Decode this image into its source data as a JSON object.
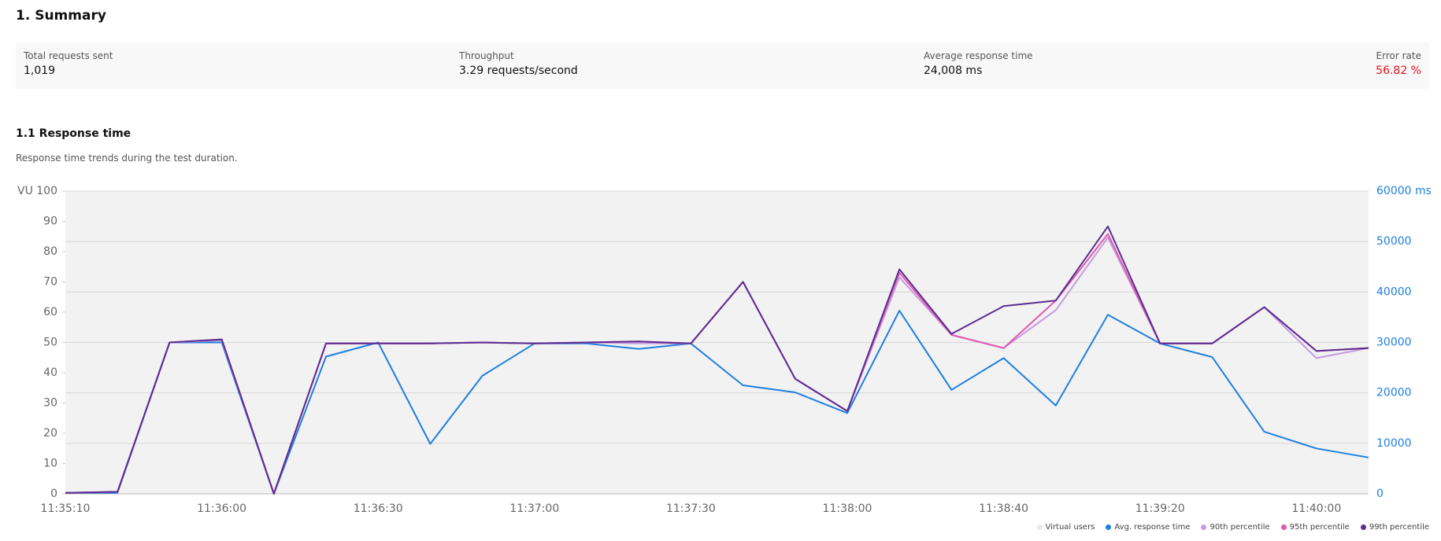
{
  "header": {
    "title": "1. Summary"
  },
  "stats": [
    {
      "label": "Total requests sent",
      "value": "1,019"
    },
    {
      "label": "Throughput",
      "value": "3.29 requests/second"
    },
    {
      "label": "Average response time",
      "value": "24,008 ms"
    },
    {
      "label": "Error rate",
      "value": "56.82 %"
    }
  ],
  "section": {
    "title": "1.1 Response time",
    "description": "Response time trends during the test duration."
  },
  "chart_data": {
    "type": "line",
    "categories": [
      "11:35:10",
      null,
      null,
      "11:36:00",
      null,
      null,
      "11:36:30",
      null,
      null,
      "11:37:00",
      null,
      null,
      "11:37:30",
      null,
      null,
      "11:38:00",
      null,
      null,
      "11:38:40",
      null,
      null,
      "11:39:20",
      null,
      null,
      "11:40:00",
      null
    ],
    "ylim": [
      0,
      100
    ],
    "yticks": [
      0,
      10,
      20,
      30,
      40,
      50,
      60,
      70,
      80,
      90,
      {
        "value": 100,
        "label": "VU 100"
      }
    ],
    "y2lim": [
      0,
      60000
    ],
    "y2ticks": [
      0,
      10000,
      20000,
      30000,
      40000,
      50000,
      {
        "value": 60000,
        "label": "60000 ms"
      }
    ],
    "grid": true,
    "legend": "bottom-right",
    "series": [
      {
        "name": "Virtual users",
        "color": "#e8e8e8",
        "values": [
          null,
          null,
          null,
          null,
          null,
          null,
          null,
          null,
          null,
          null,
          null,
          null,
          null,
          null,
          null,
          null,
          null,
          null,
          null,
          null,
          null,
          null,
          null,
          null,
          null,
          null
        ]
      },
      {
        "name": "Avg. response time",
        "color": "#1e7fe0",
        "axis": "y2",
        "values": [
          200,
          200,
          30000,
          30000,
          0,
          27200,
          30000,
          9900,
          23400,
          29800,
          29800,
          28700,
          29800,
          21500,
          20100,
          16000,
          36300,
          20600,
          26900,
          17500,
          35500,
          29800,
          27100,
          12300,
          9000,
          7200
        ]
      },
      {
        "name": "90th percentile",
        "color": "#c39be0",
        "axis": "y2",
        "values": [
          200,
          400,
          30000,
          30400,
          0,
          29800,
          29800,
          29800,
          30000,
          29800,
          30000,
          29800,
          29800,
          42000,
          22800,
          16400,
          42900,
          31500,
          28900,
          36400,
          50800,
          29800,
          29800,
          37000,
          26900,
          28900
        ]
      },
      {
        "name": "95th percentile",
        "color": "#e05aaf",
        "axis": "y2",
        "values": [
          200,
          400,
          30000,
          30600,
          0,
          29800,
          29800,
          29800,
          30000,
          29800,
          30000,
          30200,
          29800,
          42000,
          22800,
          16400,
          43800,
          31500,
          28900,
          38300,
          51500,
          29800,
          29800,
          37000,
          28300,
          28900
        ]
      },
      {
        "name": "99th percentile",
        "color": "#5b2d91",
        "axis": "y2",
        "values": [
          200,
          400,
          30000,
          30600,
          0,
          29800,
          29800,
          29800,
          30000,
          29800,
          30000,
          30200,
          29800,
          42000,
          22800,
          16400,
          44500,
          31700,
          37200,
          38300,
          53000,
          29800,
          29800,
          37000,
          28300,
          28900
        ]
      }
    ]
  }
}
